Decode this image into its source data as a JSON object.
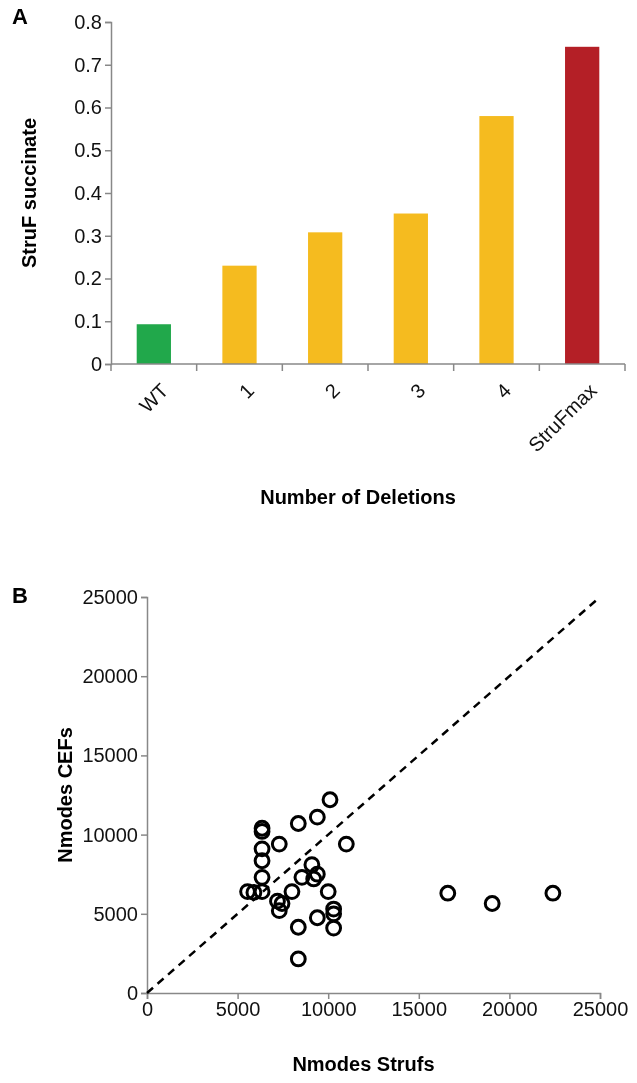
{
  "chart_data": [
    {
      "type": "bar",
      "title": "A",
      "xlabel": "Number of Deletions",
      "ylabel": "StruF succinate",
      "categories": [
        "WT",
        "1",
        "2",
        "3",
        "4",
        "StruFmax"
      ],
      "values": [
        0.093,
        0.23,
        0.308,
        0.352,
        0.58,
        0.742
      ],
      "colors": [
        "#21a84b",
        "#f5bb1f",
        "#f5bb1f",
        "#f5bb1f",
        "#f5bb1f",
        "#b41f26"
      ],
      "ylim": [
        0,
        0.8
      ],
      "yticks": [
        0,
        0.1,
        0.2,
        0.3,
        0.4,
        0.5,
        0.6,
        0.7,
        0.8
      ]
    },
    {
      "type": "scatter",
      "title": "B",
      "xlabel": "Nmodes Strufs",
      "ylabel": "Nmodes CEFs",
      "xlim": [
        0,
        25000
      ],
      "ylim": [
        0,
        25000
      ],
      "xticks": [
        0,
        5000,
        10000,
        15000,
        20000,
        25000
      ],
      "yticks": [
        0,
        5000,
        10000,
        15000,
        20000,
        25000
      ],
      "series": [
        {
          "type": "scatter",
          "color": "#000000",
          "marker": "circle",
          "x": [
            10100,
            9400,
            8350,
            6350,
            6350,
            7300,
            11000,
            6350,
            6350,
            9100,
            9400,
            9200,
            8550,
            6350,
            5550,
            5900,
            6350,
            8000,
            10000,
            7200,
            7450,
            7300,
            10300,
            10300,
            9400,
            8350,
            10300,
            8350,
            16600,
            19050,
            22400
          ],
          "values": [
            12200,
            11100,
            10700,
            10400,
            10200,
            9400,
            9400,
            9100,
            8350,
            8100,
            7500,
            7200,
            7300,
            7300,
            6400,
            6350,
            6400,
            6400,
            6400,
            5800,
            5650,
            5200,
            5300,
            5000,
            4750,
            4150,
            4100,
            2150,
            6300,
            5650,
            6300
          ]
        },
        {
          "type": "line",
          "color": "#000000",
          "line_style": "dashed",
          "marker": "none",
          "x": [
            0,
            25000
          ],
          "values": [
            0,
            25000
          ]
        }
      ]
    }
  ]
}
